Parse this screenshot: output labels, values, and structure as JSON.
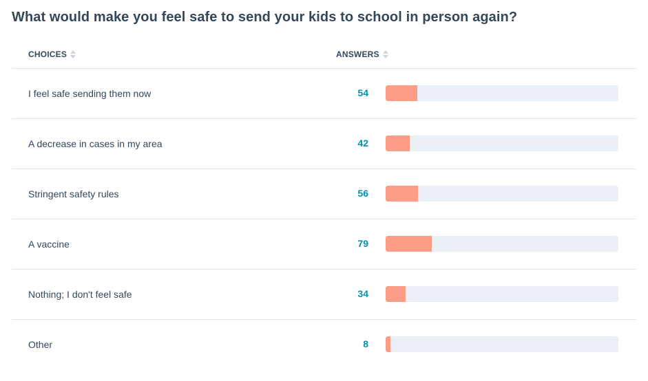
{
  "survey": {
    "question": "What would make you feel safe to send your kids to school in person again?",
    "columns": {
      "choices": "CHOICES",
      "answers": "ANSWERS"
    },
    "colors": {
      "bar_fill": "#ff8f73",
      "bar_track": "#eaf0f6",
      "count_text": "#0091ae"
    },
    "scale_max": 400,
    "rows": [
      {
        "choice": "I feel safe sending them now",
        "count": "54",
        "value": 54
      },
      {
        "choice": "A decrease in cases in my area",
        "count": "42",
        "value": 42
      },
      {
        "choice": "Stringent safety rules",
        "count": "56",
        "value": 56
      },
      {
        "choice": "A vaccine",
        "count": "79",
        "value": 79
      },
      {
        "choice": "Nothing; I don't feel safe",
        "count": "34",
        "value": 34
      },
      {
        "choice": "Other",
        "count": "8",
        "value": 8
      }
    ]
  }
}
